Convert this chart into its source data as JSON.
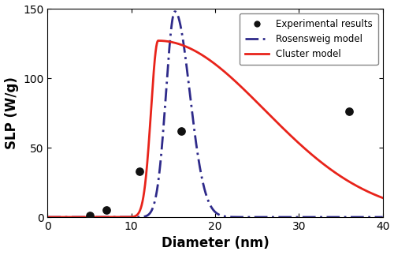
{
  "exp_x": [
    5,
    7,
    11,
    16,
    36
  ],
  "exp_y": [
    1,
    5,
    33,
    62,
    76
  ],
  "xlim": [
    0,
    40
  ],
  "ylim": [
    0,
    150
  ],
  "xticks": [
    0,
    10,
    20,
    30,
    40
  ],
  "yticks": [
    0,
    50,
    100,
    150
  ],
  "xlabel": "Diameter (nm)",
  "ylabel": "SLP (W/g)",
  "cluster_color": "#e8231a",
  "rosensweig_color": "#2e2a8a",
  "exp_color": "#111111",
  "legend_labels": [
    "Experimental results",
    "Rosensweig model",
    "Cluster model"
  ],
  "cluster_peak_x": 13.2,
  "cluster_peak_y": 127,
  "rosensweig_peak_x": 15.2,
  "rosensweig_peak_y": 148,
  "background_color": "#ffffff"
}
